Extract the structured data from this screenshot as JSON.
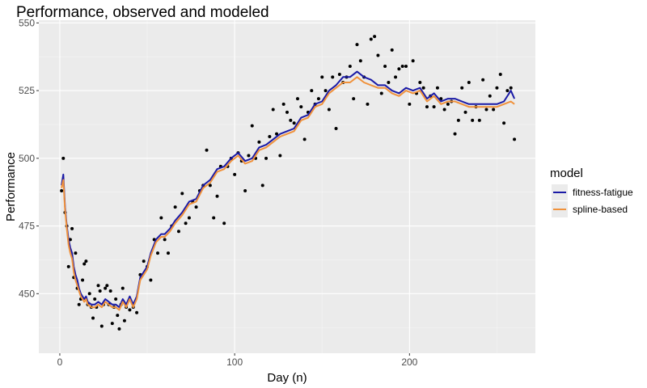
{
  "chart_data": {
    "type": "line",
    "title": "Performance, observed and modeled",
    "xlabel": "Day (n)",
    "ylabel": "Performance",
    "xlim": [
      -12,
      272
    ],
    "ylim": [
      428,
      551
    ],
    "xticks": [
      0,
      100,
      200
    ],
    "yticks": [
      450,
      475,
      500,
      525,
      550
    ],
    "grid": true,
    "legend": {
      "title": "model",
      "position": "right"
    },
    "series": [
      {
        "name": "fitness-fatigue",
        "color": "#1a1aa6",
        "x": [
          1,
          2,
          3,
          4,
          5,
          6,
          7,
          8,
          9,
          10,
          11,
          12,
          13,
          14,
          15,
          16,
          18,
          20,
          22,
          24,
          26,
          28,
          30,
          32,
          34,
          36,
          38,
          40,
          42,
          44,
          46,
          48,
          50,
          52,
          55,
          58,
          60,
          63,
          66,
          70,
          74,
          78,
          82,
          86,
          90,
          94,
          98,
          102,
          106,
          110,
          114,
          118,
          122,
          126,
          130,
          134,
          138,
          142,
          146,
          150,
          154,
          158,
          162,
          166,
          170,
          174,
          178,
          182,
          186,
          190,
          194,
          198,
          202,
          206,
          210,
          214,
          218,
          222,
          226,
          230,
          234,
          238,
          242,
          246,
          250,
          254,
          258,
          260
        ],
        "y": [
          490,
          494,
          482,
          475,
          470,
          467,
          465,
          460,
          457,
          455,
          452,
          450,
          449,
          448,
          449,
          447,
          446,
          446,
          447,
          446,
          448,
          447,
          446,
          446,
          445,
          448,
          446,
          449,
          446,
          449,
          456,
          458,
          460,
          465,
          470,
          472,
          472,
          474,
          477,
          480,
          484,
          485,
          490,
          492,
          496,
          497,
          500,
          502,
          499,
          500,
          504,
          505,
          507,
          509,
          510,
          511,
          515,
          516,
          520,
          521,
          525,
          527,
          530,
          530,
          532,
          530,
          529,
          527,
          527,
          525,
          524,
          526,
          525,
          526,
          522,
          524,
          521,
          522,
          522,
          521,
          520,
          520,
          520,
          520,
          520,
          521,
          525,
          522
        ]
      },
      {
        "name": "spline-based",
        "color": "#f0923c",
        "x": [
          1,
          2,
          3,
          4,
          5,
          6,
          7,
          8,
          9,
          10,
          11,
          12,
          13,
          14,
          15,
          16,
          18,
          20,
          22,
          24,
          26,
          28,
          30,
          32,
          34,
          36,
          38,
          40,
          42,
          44,
          46,
          48,
          50,
          52,
          55,
          58,
          60,
          63,
          66,
          70,
          74,
          78,
          82,
          86,
          90,
          94,
          98,
          102,
          106,
          110,
          114,
          118,
          122,
          126,
          130,
          134,
          138,
          142,
          146,
          150,
          154,
          158,
          162,
          166,
          170,
          174,
          178,
          182,
          186,
          190,
          194,
          198,
          202,
          206,
          210,
          214,
          218,
          222,
          226,
          230,
          234,
          238,
          242,
          246,
          250,
          254,
          258,
          260
        ],
        "y": [
          489,
          492,
          481,
          474,
          468,
          465,
          463,
          458,
          455,
          453,
          451,
          449,
          448,
          447,
          448,
          446,
          445,
          445,
          446,
          445,
          447,
          446,
          445,
          445,
          444,
          447,
          445,
          448,
          445,
          448,
          455,
          457,
          459,
          464,
          469,
          471,
          471,
          473,
          476,
          479,
          483,
          484,
          489,
          491,
          495,
          496,
          499,
          501,
          498,
          499,
          503,
          504,
          506,
          508,
          509,
          510,
          514,
          515,
          519,
          520,
          524,
          526,
          528,
          528,
          530,
          528,
          527,
          526,
          526,
          524,
          523,
          525,
          524,
          525,
          521,
          523,
          520,
          521,
          521,
          520,
          519,
          519,
          519,
          519,
          519,
          520,
          521,
          520
        ]
      }
    ],
    "observed": {
      "x": [
        1,
        2,
        3,
        4,
        5,
        6,
        7,
        8,
        9,
        10,
        11,
        12,
        13,
        14,
        15,
        16,
        17,
        18,
        19,
        20,
        21,
        22,
        23,
        24,
        25,
        26,
        27,
        28,
        29,
        30,
        31,
        32,
        33,
        34,
        35,
        36,
        37,
        38,
        40,
        42,
        44,
        46,
        48,
        50,
        52,
        54,
        56,
        58,
        60,
        62,
        64,
        66,
        68,
        70,
        72,
        74,
        76,
        78,
        80,
        82,
        84,
        86,
        88,
        90,
        92,
        94,
        96,
        98,
        100,
        102,
        104,
        106,
        108,
        110,
        112,
        114,
        116,
        118,
        120,
        122,
        124,
        126,
        128,
        130,
        132,
        134,
        136,
        138,
        140,
        142,
        144,
        146,
        148,
        150,
        152,
        154,
        156,
        158,
        160,
        162,
        164,
        166,
        168,
        170,
        172,
        174,
        176,
        178,
        180,
        182,
        184,
        186,
        188,
        190,
        192,
        194,
        196,
        198,
        200,
        202,
        204,
        206,
        208,
        210,
        212,
        214,
        216,
        218,
        220,
        222,
        224,
        226,
        228,
        230,
        232,
        234,
        236,
        238,
        240,
        242,
        244,
        246,
        248,
        250,
        252,
        254,
        256,
        258,
        260
      ],
      "y": [
        488,
        500,
        480,
        475,
        460,
        470,
        474,
        456,
        465,
        452,
        446,
        448,
        455,
        461,
        462,
        446,
        450,
        445,
        441,
        448,
        445,
        453,
        451,
        438,
        446,
        452,
        453,
        446,
        451,
        439,
        445,
        448,
        442,
        437,
        446,
        452,
        440,
        445,
        444,
        445,
        443,
        457,
        462,
        460,
        455,
        470,
        465,
        478,
        470,
        465,
        475,
        482,
        473,
        487,
        476,
        478,
        484,
        482,
        488,
        490,
        503,
        490,
        478,
        486,
        497,
        476,
        497,
        500,
        494,
        502,
        499,
        488,
        501,
        512,
        500,
        506,
        490,
        500,
        508,
        518,
        509,
        501,
        520,
        517,
        514,
        513,
        522,
        519,
        507,
        517,
        525,
        520,
        522,
        530,
        525,
        518,
        530,
        511,
        531,
        528,
        530,
        534,
        522,
        542,
        536,
        530,
        520,
        544,
        545,
        538,
        524,
        534,
        528,
        540,
        530,
        533,
        534,
        534,
        520,
        536,
        524,
        528,
        526,
        519,
        523,
        519,
        526,
        522,
        518,
        520,
        521,
        509,
        514,
        526,
        517,
        528,
        514,
        519,
        514,
        529,
        518,
        523,
        518,
        526,
        531,
        513,
        525,
        526,
        507
      ]
    }
  }
}
